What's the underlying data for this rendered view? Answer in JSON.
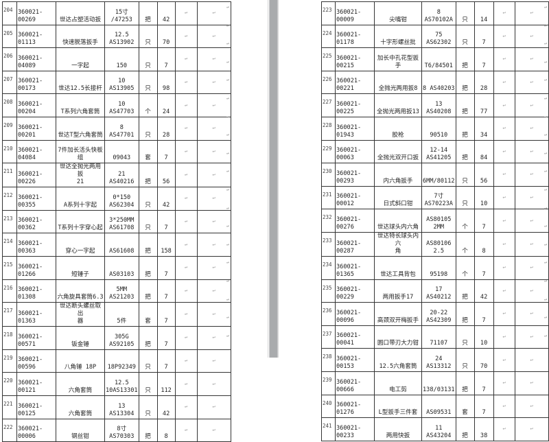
{
  "paragraph_mark": "↵",
  "left_page": {
    "rows": [
      {
        "no": "204",
        "code": "360021-00269",
        "name": "世达占塑活动扳",
        "spec": "15寸\n/47253",
        "unit": "把",
        "qty": "42"
      },
      {
        "no": "205",
        "code": "360021-01113",
        "name": "快速脱落扳手",
        "spec": "12.5\nAS13902",
        "unit": "只",
        "qty": "70"
      },
      {
        "no": "206",
        "code": "360021-04089",
        "name": "一字起",
        "spec": "150",
        "unit": "只",
        "qty": "7"
      },
      {
        "no": "207",
        "code": "360021-00173",
        "name": "世达12.5长接杆",
        "spec": "10\nAS13905",
        "unit": "只",
        "qty": "98"
      },
      {
        "no": "208",
        "code": "360021-00204",
        "name": "T系列六角套筒",
        "spec": "10\nAS47703",
        "unit": "个",
        "qty": "24"
      },
      {
        "no": "209",
        "code": "360021-00201",
        "name": "世达T型六角套筒",
        "spec": "8\nAS47701",
        "unit": "只",
        "qty": "28"
      },
      {
        "no": "210",
        "code": "360021-04084",
        "name": "7件加长活头快板\n组",
        "spec": "09043",
        "unit": "套",
        "qty": "7"
      },
      {
        "no": "211",
        "code": "360021-00226",
        "name": "世达全抛光两用扳\n21",
        "spec": "21\nAS40216",
        "unit": "把",
        "qty": "56"
      },
      {
        "no": "212",
        "code": "360021-00355",
        "name": "A系列十字起",
        "spec": "0*150\nAS62304",
        "unit": "只",
        "qty": "42"
      },
      {
        "no": "213",
        "code": "360021-00362",
        "name": "T系列十字穿心起",
        "spec": "3*250MM\nAS61708",
        "unit": "只",
        "qty": "7"
      },
      {
        "no": "214",
        "code": "360021-00363",
        "name": "穿心一字起",
        "spec": "AS61608",
        "unit": "把",
        "qty": "158"
      },
      {
        "no": "215",
        "code": "360021-01266",
        "name": "短锤子",
        "spec": "AS03103",
        "unit": "把",
        "qty": "7"
      },
      {
        "no": "216",
        "code": "360021-01308",
        "name": "六角旋具套筒6.3",
        "spec": "5MM\nAS21203",
        "unit": "把",
        "qty": "7"
      },
      {
        "no": "217",
        "code": "360021-01363",
        "name": "世达断头螺丝取出\n器",
        "spec": "5件",
        "unit": "套",
        "qty": "7"
      },
      {
        "no": "218",
        "code": "360021-00571",
        "name": "钣金锤",
        "spec": "305G\nAS92105",
        "unit": "把",
        "qty": "7"
      },
      {
        "no": "219",
        "code": "360021-00596",
        "name": "八角锤 18P",
        "spec": "18P92349",
        "unit": "只",
        "qty": "7"
      },
      {
        "no": "220",
        "code": "360021-00121",
        "name": "六角套筒",
        "spec": "12.5\n10AS13301",
        "unit": "只",
        "qty": "112"
      },
      {
        "no": "221",
        "code": "360021-00125",
        "name": "六角套筒",
        "spec": "13\nAS13304",
        "unit": "只",
        "qty": "42"
      },
      {
        "no": "222",
        "code": "360021-00006",
        "name": "钢丝钳",
        "spec": "8寸\nAS70303",
        "unit": "把",
        "qty": "8"
      }
    ]
  },
  "right_page": {
    "rows": [
      {
        "no": "223",
        "code": "360021-00009",
        "name": "尖嘴钳",
        "spec": "8\nAS70102A",
        "unit": "只",
        "qty": "14"
      },
      {
        "no": "224",
        "code": "360021-01178",
        "name": "十字形螺丝批",
        "spec": "75\nAS62302",
        "unit": "只",
        "qty": "7"
      },
      {
        "no": "225",
        "code": "360021-00215",
        "name": "加长中孔花型扳手",
        "spec": "T6/84501",
        "unit": "把",
        "qty": "7"
      },
      {
        "no": "226",
        "code": "360021-00221",
        "name": "全抛光两用扳8",
        "spec": "8 AS40203",
        "unit": "把",
        "qty": "28"
      },
      {
        "no": "227",
        "code": "360021-00225",
        "name": "全抛光两用扳13",
        "spec": "13\nAS40208",
        "unit": "把",
        "qty": "77"
      },
      {
        "no": "228",
        "code": "360021-01943",
        "name": "胶枪",
        "spec": "90510",
        "unit": "把",
        "qty": "34"
      },
      {
        "no": "229",
        "code": "360021-00063",
        "name": "全抛光双开口扳",
        "spec": "12-14\nAS41205",
        "unit": "把",
        "qty": "84"
      },
      {
        "no": "230",
        "code": "360021-00293",
        "name": "内六角扳手",
        "spec": "6MM/80112",
        "unit": "只",
        "qty": "56"
      },
      {
        "no": "231",
        "code": "360021-00012",
        "name": "日式斜口钳",
        "spec": "7寸\nAS70223A",
        "unit": "只",
        "qty": "10"
      },
      {
        "no": "232",
        "code": "360021-00276",
        "name": "世达球头内六角",
        "spec": "AS80105\n2MM",
        "unit": "个",
        "qty": "7"
      },
      {
        "no": "233",
        "code": "360021-00287",
        "name": "世达特长球头内六\n角",
        "spec": "AS80106\n2.5",
        "unit": "个",
        "qty": "8"
      },
      {
        "no": "234",
        "code": "360021-01365",
        "name": "世达工具背包",
        "spec": "95198",
        "unit": "个",
        "qty": "7"
      },
      {
        "no": "235",
        "code": "360021-00229",
        "name": "两用扳手17",
        "spec": "17\nAS40212",
        "unit": "把",
        "qty": "42"
      },
      {
        "no": "236",
        "code": "360021-00096",
        "name": "高颈双开梅扳手",
        "spec": "20-22\nAS42309",
        "unit": "把",
        "qty": "7"
      },
      {
        "no": "237",
        "code": "360021-00041",
        "name": "圆口带刃大力钳",
        "spec": "71107",
        "unit": "只",
        "qty": "10"
      },
      {
        "no": "238",
        "code": "360021-00153",
        "name": "12.5六角套筒",
        "spec": "24\nAS13312",
        "unit": "只",
        "qty": "70"
      },
      {
        "no": "239",
        "code": "360021-00666",
        "name": "电工剪",
        "spec": "138/03131",
        "unit": "把",
        "qty": "7"
      },
      {
        "no": "240",
        "code": "360021-01276",
        "name": "L型扳手三件套",
        "spec": "AS09531",
        "unit": "套",
        "qty": "7"
      },
      {
        "no": "241",
        "code": "360021-00233",
        "name": "两用快扳",
        "spec": "11\nAS43204",
        "unit": "把",
        "qty": "38"
      }
    ]
  }
}
